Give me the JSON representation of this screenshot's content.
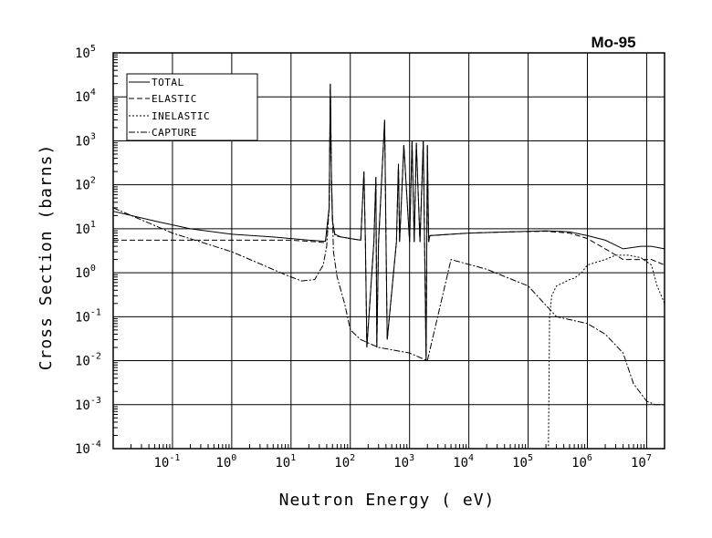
{
  "chart_data": {
    "type": "line",
    "title": "Mo-95",
    "xlabel": "Neutron Energy ( eV)",
    "ylabel": "Cross Section (barns)",
    "xscale": "log",
    "yscale": "log",
    "xlim": [
      0.01,
      20000000
    ],
    "ylim": [
      0.0001,
      100000
    ],
    "grid": true,
    "legend_position": "top-left",
    "x_ticks": [
      {
        "base": "10",
        "exp": "-1",
        "value": 0.1
      },
      {
        "base": "10",
        "exp": "0",
        "value": 1
      },
      {
        "base": "10",
        "exp": "1",
        "value": 10
      },
      {
        "base": "10",
        "exp": "2",
        "value": 100
      },
      {
        "base": "10",
        "exp": "3",
        "value": 1000
      },
      {
        "base": "10",
        "exp": "4",
        "value": 10000
      },
      {
        "base": "10",
        "exp": "5",
        "value": 100000
      },
      {
        "base": "10",
        "exp": "6",
        "value": 1000000
      },
      {
        "base": "10",
        "exp": "7",
        "value": 10000000
      }
    ],
    "y_ticks": [
      {
        "base": "10",
        "exp": "-4",
        "value": 0.0001
      },
      {
        "base": "10",
        "exp": "-3",
        "value": 0.001
      },
      {
        "base": "10",
        "exp": "-2",
        "value": 0.01
      },
      {
        "base": "10",
        "exp": "-1",
        "value": 0.1
      },
      {
        "base": "10",
        "exp": "0",
        "value": 1
      },
      {
        "base": "10",
        "exp": "1",
        "value": 10
      },
      {
        "base": "10",
        "exp": "2",
        "value": 100
      },
      {
        "base": "10",
        "exp": "3",
        "value": 1000
      },
      {
        "base": "10",
        "exp": "4",
        "value": 10000
      },
      {
        "base": "10",
        "exp": "5",
        "value": 100000
      }
    ],
    "series": [
      {
        "name": "TOTAL",
        "style": "solid",
        "x": [
          0.01,
          0.05,
          0.2,
          1,
          5,
          20,
          38,
          44,
          46,
          48,
          50,
          55,
          70,
          100,
          150,
          170,
          180,
          190,
          250,
          270,
          280,
          300,
          380,
          400,
          420,
          600,
          650,
          680,
          800,
          1000,
          1100,
          1200,
          1300,
          1500,
          1700,
          1900,
          2000,
          2100,
          2200,
          5000,
          10000,
          50000,
          200000,
          500000,
          1000000,
          2000000,
          4000000,
          8000000,
          12000000,
          20000000
        ],
        "y": [
          25,
          15,
          10,
          7.5,
          6.5,
          5.5,
          5.2,
          30,
          20000,
          150,
          15,
          7.5,
          6.5,
          6,
          5.5,
          200,
          5,
          0.02,
          5,
          150,
          0.02,
          5,
          3000,
          5,
          0.03,
          5,
          300,
          5,
          800,
          5,
          1000,
          5,
          900,
          5,
          1000,
          0.01,
          800,
          5,
          7,
          7.5,
          8,
          8.5,
          9,
          8.5,
          7,
          5.5,
          3.5,
          4,
          4,
          3.5
        ]
      },
      {
        "name": "ELASTIC",
        "style": "dashed",
        "x": [
          0.01,
          0.1,
          1,
          10,
          30,
          38,
          44,
          46,
          48,
          50,
          55,
          70,
          100,
          150,
          170,
          180,
          190,
          250,
          270,
          280,
          300,
          380,
          400,
          420,
          600,
          650,
          680,
          800,
          1000,
          1100,
          1200,
          1300,
          1500,
          1700,
          1900,
          2000,
          2100,
          2200,
          5000,
          10000,
          50000,
          200000,
          500000,
          1000000,
          2000000,
          4000000,
          8000000,
          12000000,
          20000000
        ],
        "y": [
          5.5,
          5.5,
          5.5,
          5.5,
          5.0,
          4.8,
          30,
          19500,
          150,
          15,
          7,
          6.5,
          6,
          5.5,
          200,
          5,
          0.02,
          5,
          150,
          0.02,
          5,
          3000,
          5,
          0.03,
          5,
          300,
          5,
          800,
          5,
          1000,
          5,
          900,
          5,
          1000,
          0.01,
          800,
          5,
          7,
          7.5,
          8,
          8.5,
          8.8,
          8,
          6,
          3.5,
          2,
          2,
          2,
          1.5
        ]
      },
      {
        "name": "INELASTIC",
        "style": "dotted",
        "x": [
          210000,
          220000,
          230000,
          250000,
          300000,
          400000,
          500000,
          600000,
          800000,
          1000000,
          2000000,
          3000000,
          5000000,
          8000000,
          12000000,
          15000000,
          20000000
        ],
        "y": [
          0.0001,
          0.0001,
          0.1,
          0.3,
          0.5,
          0.6,
          0.7,
          0.75,
          1,
          1.5,
          2,
          2.5,
          2.5,
          2.2,
          1.5,
          0.5,
          0.2
        ]
      },
      {
        "name": "CAPTURE",
        "style": "dashdot",
        "x": [
          0.01,
          0.1,
          1,
          3,
          8,
          15,
          25,
          35,
          40,
          44,
          46,
          48,
          52,
          60,
          80,
          100,
          150,
          300,
          1000,
          2000,
          5000,
          20000,
          100000,
          300000,
          1000000,
          2000000,
          4000000,
          6000000,
          10000000,
          14000000,
          20000000
        ],
        "y": [
          30,
          8,
          3,
          1.6,
          0.9,
          0.65,
          0.7,
          1.5,
          4,
          30,
          20000,
          150,
          3,
          0.8,
          0.2,
          0.05,
          0.03,
          0.02,
          0.015,
          0.01,
          2,
          1.2,
          0.5,
          0.1,
          0.07,
          0.04,
          0.015,
          0.003,
          0.0012,
          0.001,
          0.001
        ]
      }
    ]
  }
}
